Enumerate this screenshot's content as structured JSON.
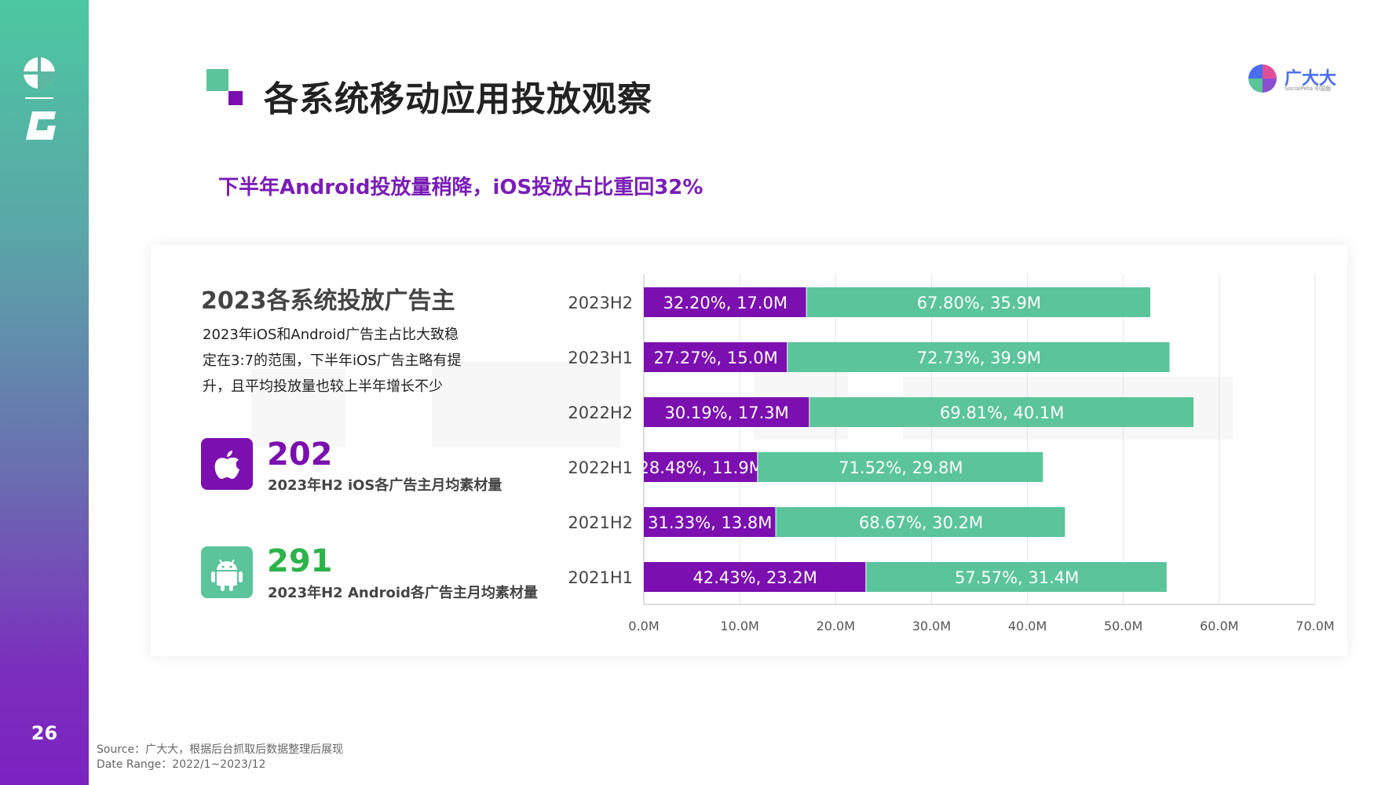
{
  "page": {
    "title": "各系统移动应用投放观察",
    "subtitle": "下半年Android投放量稍降，iOS投放占比重回32%",
    "number": "26"
  },
  "brand": {
    "name": "广大大",
    "sub": "SocialPeta 中国版"
  },
  "card": {
    "title": "2023各系统投放广告主",
    "desc_lines": [
      "2023年iOS和Android广告主占比大致稳",
      "定在3:7的范围，下半年iOS广告主略有提",
      "升，且平均投放量也较上半年增长不少"
    ],
    "ios": {
      "value": "202",
      "label": "2023年H2 iOS各广告主月均素材量",
      "icon": "apple-icon"
    },
    "android": {
      "value": "291",
      "label": "2023年H2 Android各广告主月均素材量",
      "icon": "android-icon"
    }
  },
  "colors": {
    "ios": "#7b0fb0",
    "android": "#5bc49a",
    "accent_purple": "#7a1db6"
  },
  "chart_data": {
    "type": "bar",
    "orientation": "horizontal",
    "stacked": true,
    "categories": [
      "2023H2",
      "2023H1",
      "2022H2",
      "2022H1",
      "2021H2",
      "2021H1"
    ],
    "series": [
      {
        "values": [
          17.0,
          15.0,
          17.3,
          11.9,
          13.8,
          23.2
        ],
        "labels": [
          "32.20%, 17.0M",
          "27.27%, 15.0M",
          "30.19%, 17.3M",
          "28.48%, 11.9M",
          "31.33%, 13.8M",
          "42.43%, 23.2M"
        ]
      },
      {
        "values": [
          35.9,
          39.9,
          40.1,
          29.8,
          30.2,
          31.4
        ],
        "labels": [
          "67.80%, 35.9M",
          "72.73%, 39.9M",
          "69.81%, 40.1M",
          "71.52%, 29.8M",
          "68.67%, 30.2M",
          "57.57%, 31.4M"
        ]
      }
    ],
    "xlim": [
      0,
      70
    ],
    "xticks": [
      "0.0M",
      "10.0M",
      "20.0M",
      "30.0M",
      "40.0M",
      "50.0M",
      "60.0M",
      "70.0M"
    ],
    "grid": true
  },
  "source": {
    "line1": "Source：广大大，根据后台抓取后数据整理后展现",
    "line2": "Date Range：2022/1~2023/12"
  }
}
